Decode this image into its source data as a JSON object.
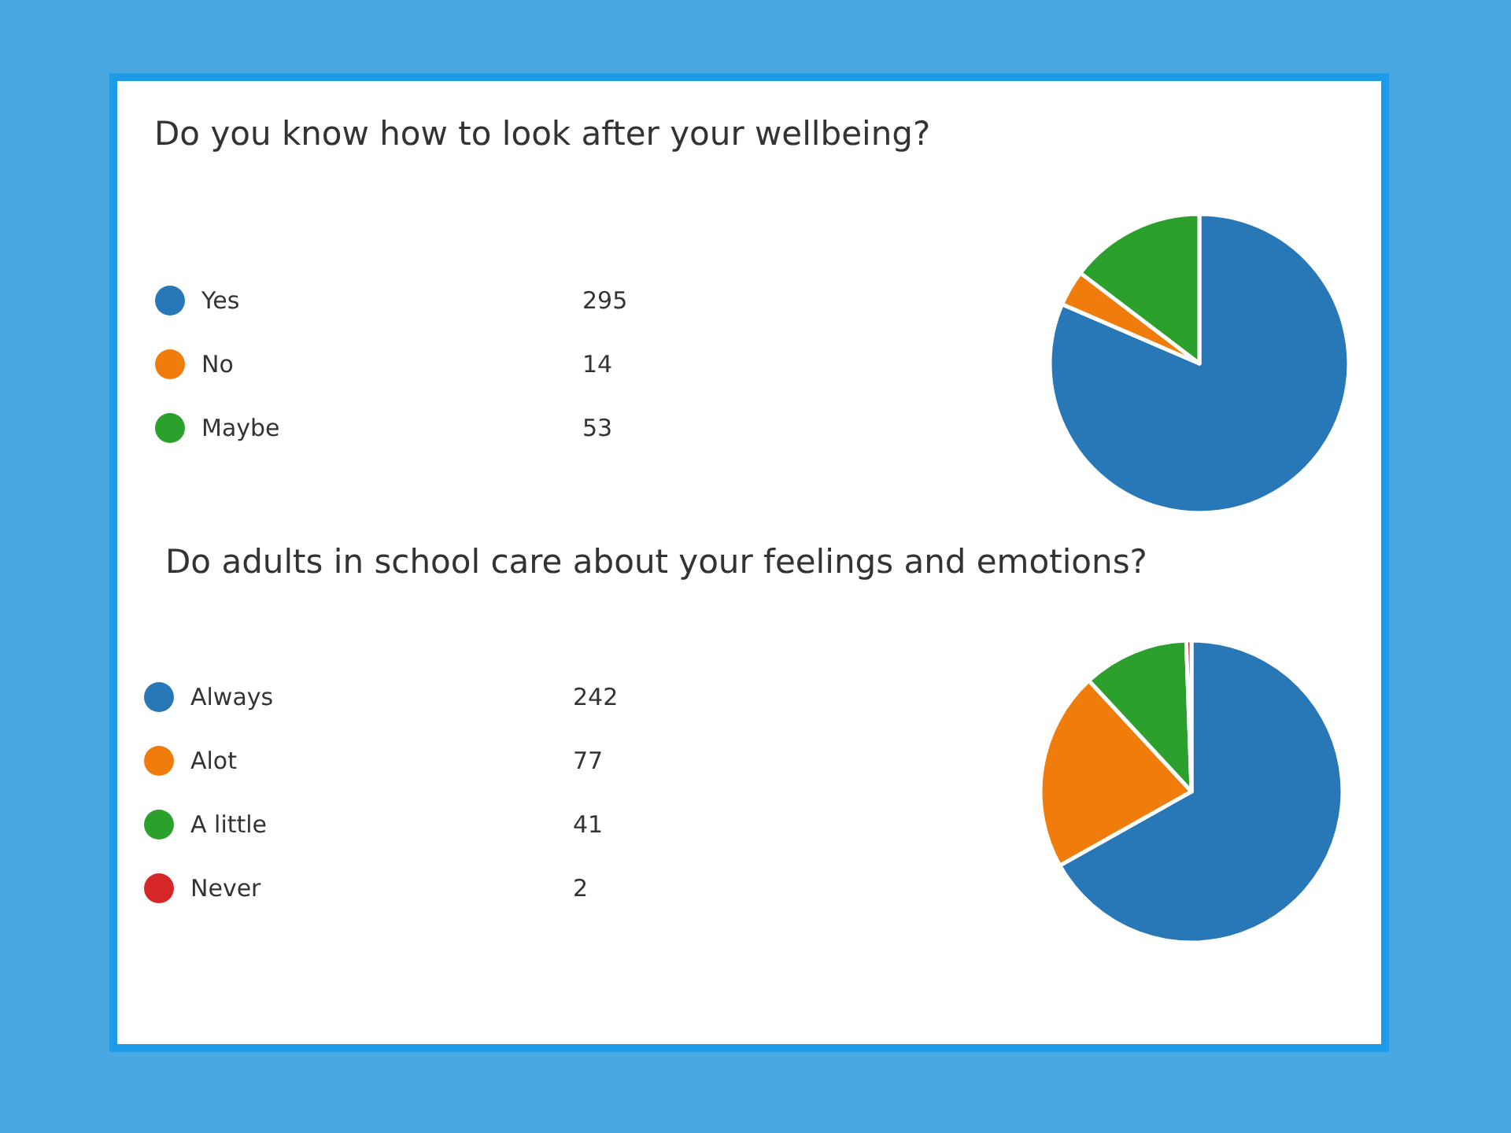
{
  "chart_data": [
    {
      "type": "pie",
      "title": "Do you know how to look after your wellbeing?",
      "categories": [
        "Yes",
        "No",
        "Maybe"
      ],
      "values": [
        295,
        14,
        53
      ],
      "colors": [
        "#2878b8",
        "#f07c0c",
        "#2ca02c"
      ],
      "legend": "left",
      "data_labels": true
    },
    {
      "type": "pie",
      "title": "Do adults in school care about your feelings and emotions?",
      "categories": [
        "Always",
        "Alot",
        "A little",
        "Never"
      ],
      "values": [
        242,
        77,
        41,
        2
      ],
      "colors": [
        "#2878b8",
        "#f07c0c",
        "#2ca02c",
        "#d62728"
      ],
      "legend": "left",
      "data_labels": true
    }
  ]
}
